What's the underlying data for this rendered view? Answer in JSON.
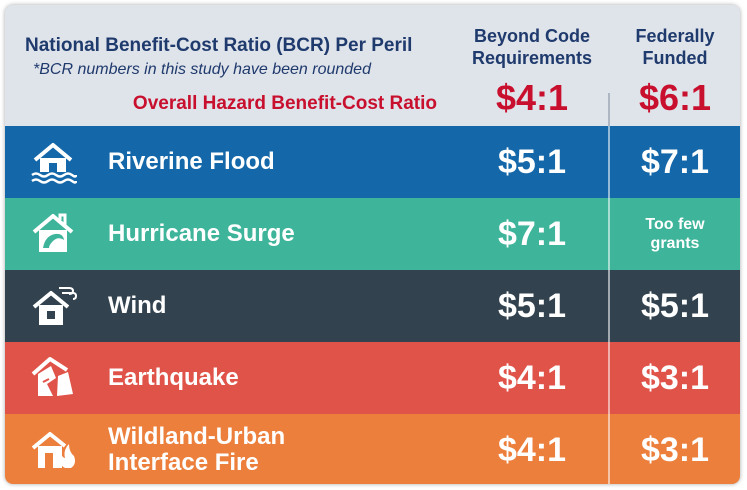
{
  "header": {
    "title": "National Benefit-Cost Ratio (BCR) Per Peril",
    "note": "*BCR numbers in this study have been rounded",
    "overall_label": "Overall Hazard Benefit-Cost Ratio",
    "col1_line1": "Beyond Code",
    "col1_line2": "Requirements",
    "col2_line1": "Federally",
    "col2_line2": "Funded",
    "overall_col1": "$4:1",
    "overall_col2": "$6:1"
  },
  "rows": [
    {
      "label_line1": "Riverine Flood",
      "label_line2": "",
      "beyond_code": "$5:1",
      "federal_line1": "$7:1",
      "federal_line2": "",
      "color": "#1467a8",
      "icon": "flooded-house-icon"
    },
    {
      "label_line1": "Hurricane Surge",
      "label_line2": "",
      "beyond_code": "$7:1",
      "federal_line1": "Too few",
      "federal_line2": "grants",
      "color": "#3eb49a",
      "icon": "hurricane-house-icon"
    },
    {
      "label_line1": "Wind",
      "label_line2": "",
      "beyond_code": "$5:1",
      "federal_line1": "$5:1",
      "federal_line2": "",
      "color": "#32434f",
      "icon": "wind-house-icon"
    },
    {
      "label_line1": "Earthquake",
      "label_line2": "",
      "beyond_code": "$4:1",
      "federal_line1": "$3:1",
      "federal_line2": "",
      "color": "#e05349",
      "icon": "collapsed-house-icon"
    },
    {
      "label_line1": "Wildland-Urban",
      "label_line2": "Interface Fire",
      "beyond_code": "$4:1",
      "federal_line1": "$3:1",
      "federal_line2": "",
      "color": "#ec7f3c",
      "icon": "fire-house-icon"
    }
  ]
}
